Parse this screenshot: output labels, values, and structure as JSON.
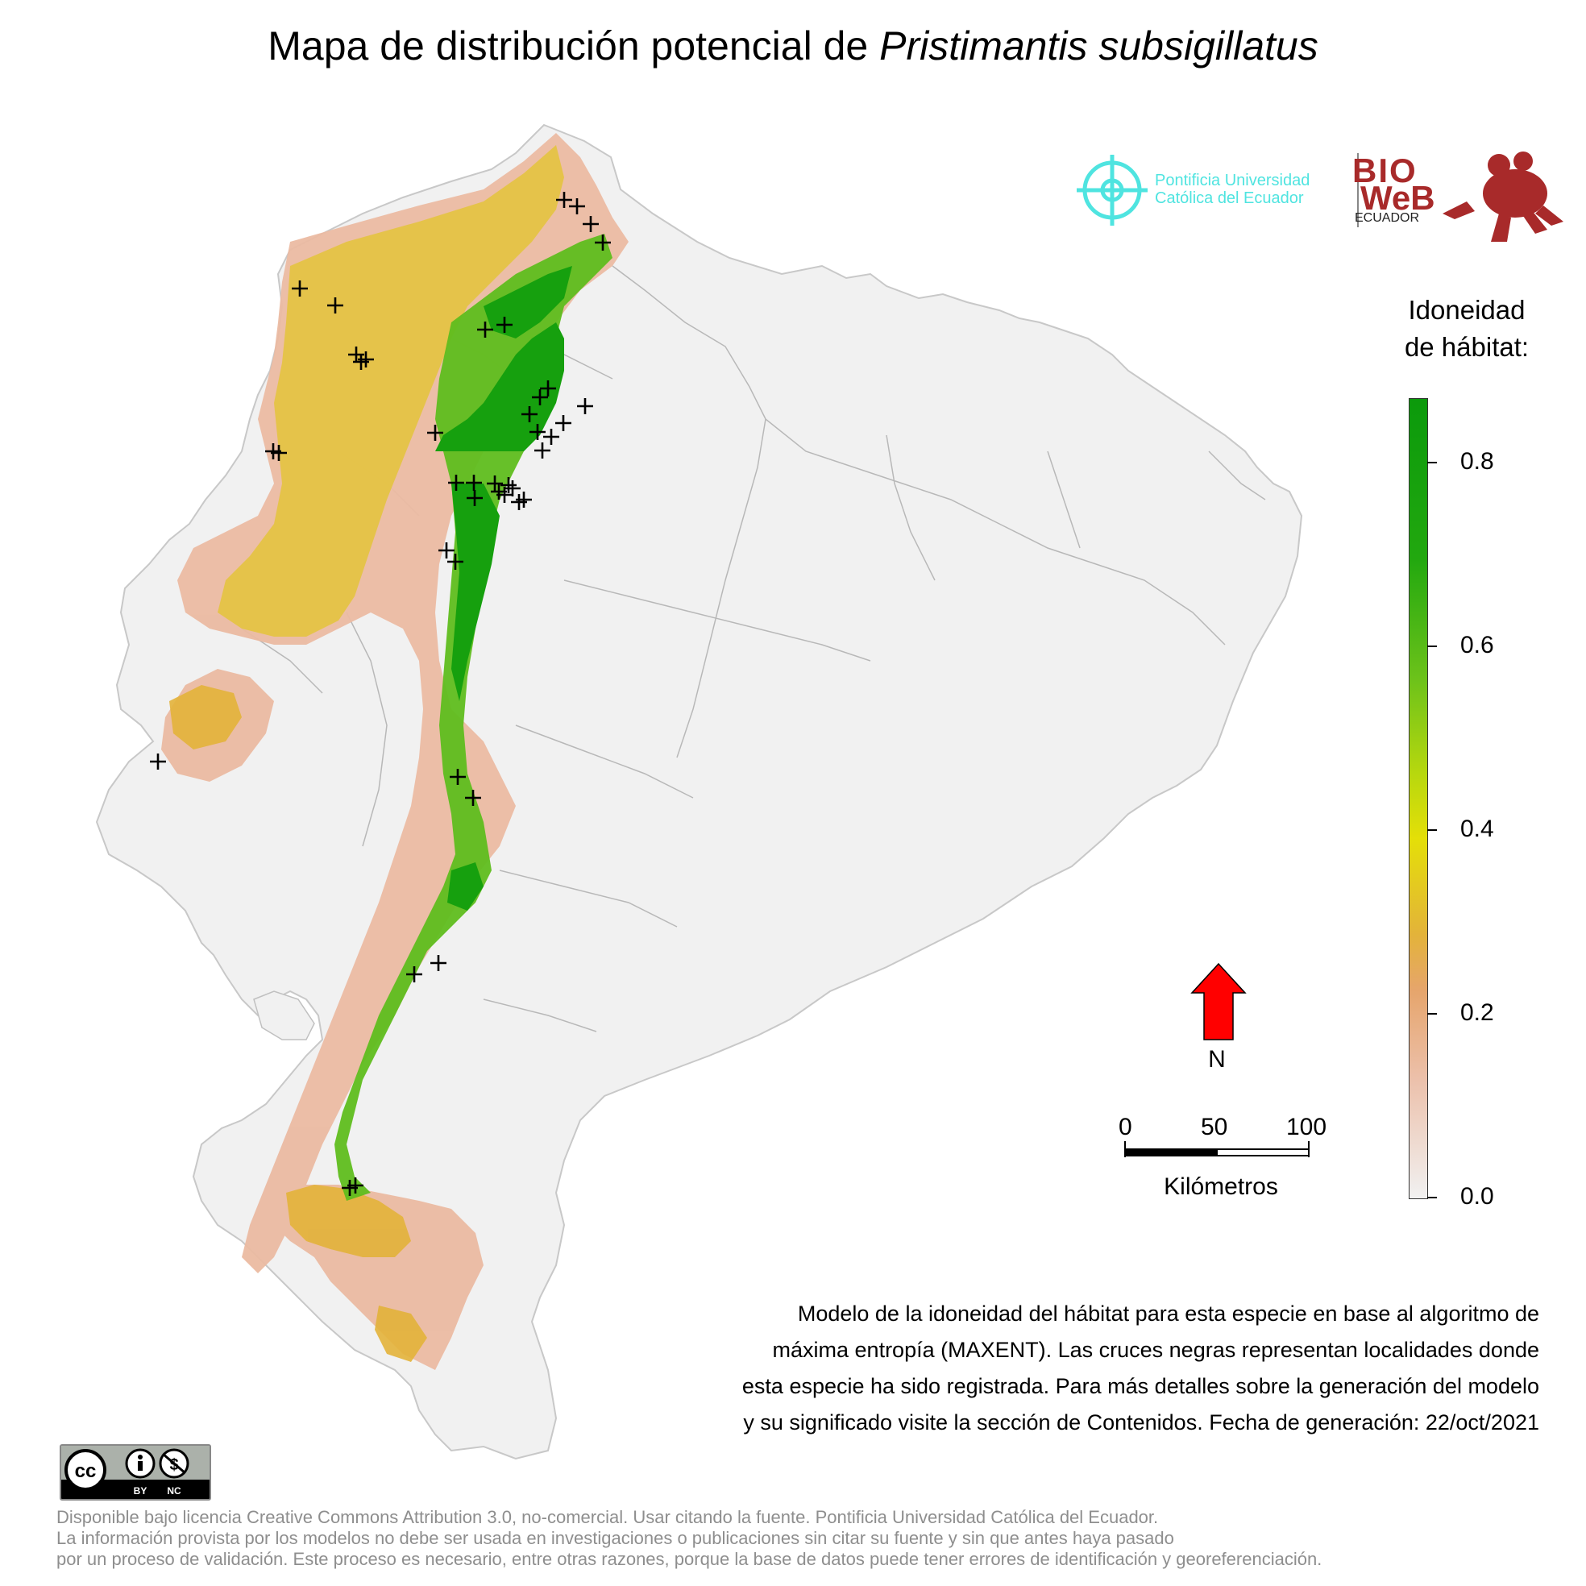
{
  "header": {
    "title_prefix": "Mapa de distribución potencial de ",
    "title_species": "Pristimantis subsigillatus"
  },
  "logos": {
    "puce_line1": "Pontificia Universidad",
    "puce_line2": "Católica del Ecuador",
    "bioweb_bio": "BIO",
    "bioweb_web": "WeB",
    "bioweb_ecuador": "ECUADOR",
    "cc_by": "BY",
    "cc_nc": "NC",
    "colors": {
      "puce": "#4fe4e0",
      "bioweb": "#a82a2a"
    }
  },
  "legend": {
    "title_line1": "Idoneidad",
    "title_line2": "de hábitat:",
    "ticks": [
      "0.0",
      "0.2",
      "0.4",
      "0.6",
      "0.8"
    ],
    "max_value": 0.87,
    "colors": [
      "#f1f1f1",
      "#ecc0aa",
      "#e6a56c",
      "#e3b33a",
      "#e4df08",
      "#b8d80e",
      "#6cc21a",
      "#22a80f",
      "#0b9a0b"
    ]
  },
  "north_arrow": {
    "label": "N",
    "color": "#ff0000"
  },
  "scale_bar": {
    "labels": [
      "0",
      "50",
      "100"
    ],
    "unit": "Kilómetros"
  },
  "caption": {
    "line1": "Modelo de la idoneidad del hábitat para esta especie en base al algoritmo de",
    "line2": "máxima entropía (MAXENT). Las cruces negras representan localidades donde",
    "line3": "esta especie ha sido registrada. Para más detalles sobre la generación del modelo",
    "line4": "y su significado visite la sección de Contenidos. Fecha de generación: 22/oct/2021"
  },
  "footer": {
    "line1": "Disponible bajo licencia Creative Commons Attribution 3.0, no-comercial. Usar citando la fuente. Pontificia Universidad Católica del Ecuador.",
    "line2": "La información provista por los modelos no debe ser usada en investigaciones o publicaciones sin citar su fuente y sin que antes haya pasado",
    "line3": "por un proceso de validación. Este proceso es necesario, entre otras razones, porque la base de datos puede tener errores de identificación y georeferenciación."
  },
  "map": {
    "land_color": "#f1f1f1",
    "border_color": "#b0b0b0",
    "marker_symbol": "+",
    "marker_count": 41
  }
}
